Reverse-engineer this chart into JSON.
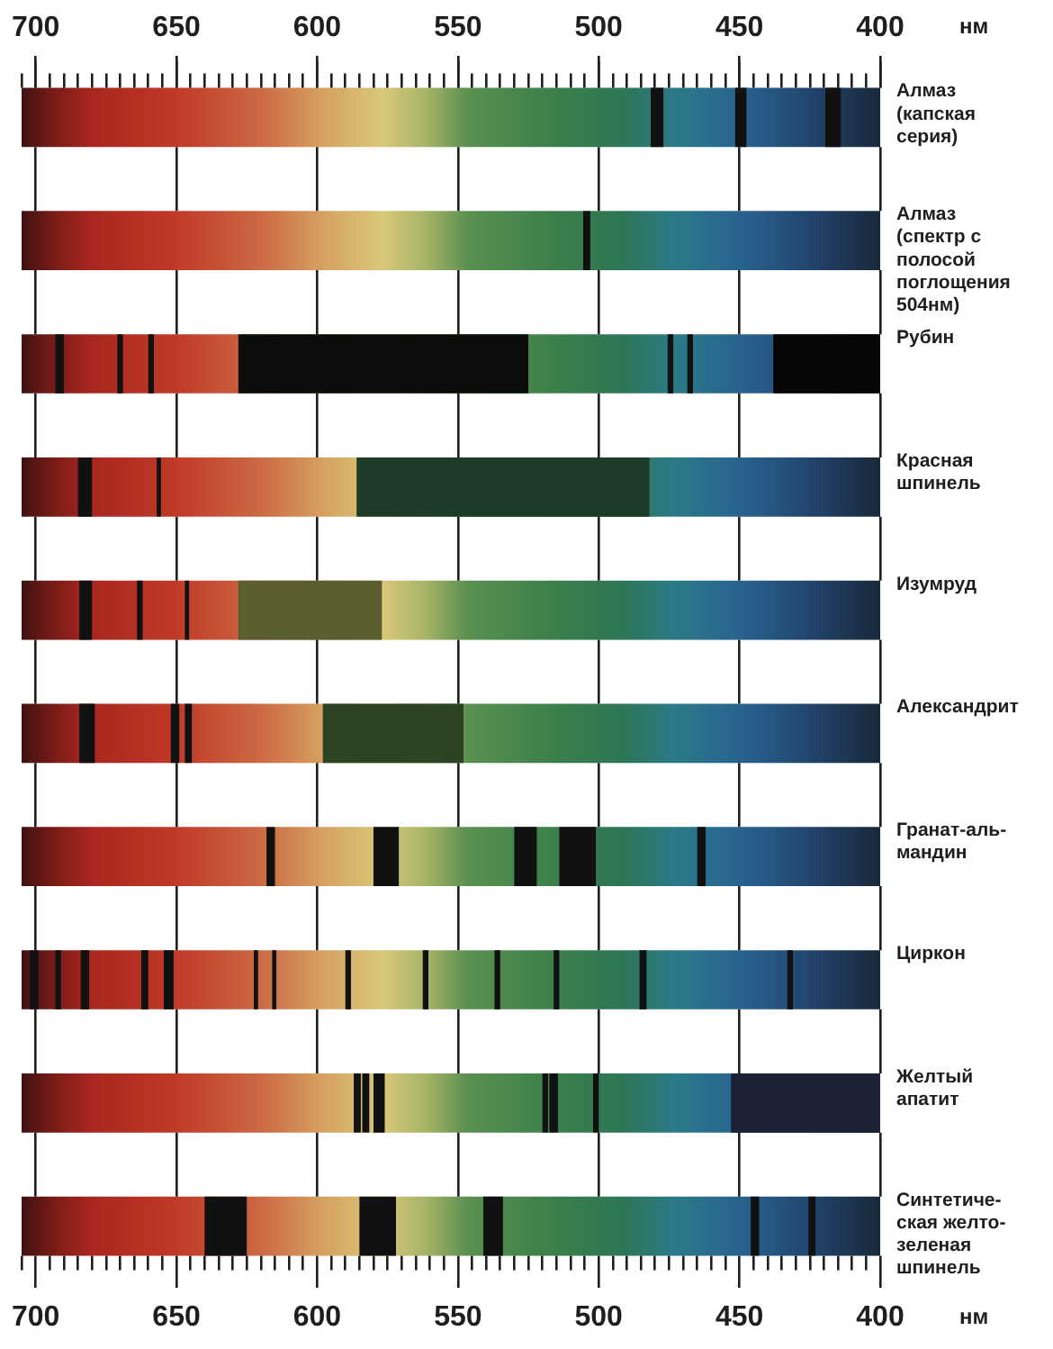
{
  "chart_data": {
    "type": "bar",
    "orientation": "horizontal",
    "categories": [
      "Алмаз\n(капская\nсерия)",
      "Алмаз\n(спектр с\nполосой\nпоглощения\n504нм)",
      "Рубин",
      "Красная\nшпинель",
      "Изумруд",
      "Александрит",
      "Гранат-аль-\nмандин",
      "Циркон",
      "Желтый\nапатит",
      "Синтетиче-\nская желто-\nзеленая\nшпинель"
    ],
    "series": [
      {
        "values": [
          305,
          305,
          305,
          305,
          305,
          305,
          305,
          305,
          305,
          305
        ],
        "base": [
          400,
          400,
          400,
          400,
          400,
          400,
          400,
          400,
          400,
          400
        ]
      },
      {
        "colors": [
          null,
          null,
          "#0b0d0b",
          "#1d3b26",
          "#5b5f30",
          "#2c4424",
          null,
          null,
          "#1a2233",
          null
        ],
        "values": [
          null,
          null,
          103,
          104,
          51,
          50,
          null,
          null,
          53,
          null
        ],
        "base": [
          null,
          null,
          525,
          482,
          577,
          548,
          null,
          null,
          400,
          null
        ]
      },
      {
        "color": "#070707",
        "values": [
          null,
          null,
          38,
          null,
          null,
          null,
          null,
          null,
          null,
          null
        ],
        "base": [
          null,
          null,
          400,
          null,
          null,
          null,
          null,
          null,
          null,
          null
        ]
      },
      {
        "color": "#111111",
        "values": [
          4.5,
          2.5,
          3,
          5,
          4.5,
          5.5,
          3,
          3,
          2.5,
          15
        ],
        "base": [
          477,
          503,
          690,
          680,
          680,
          679,
          615,
          699,
          584.5,
          625
        ]
      },
      {
        "color": "#111111",
        "values": [
          4,
          null,
          2,
          1.5,
          2,
          3,
          9,
          2,
          2.5,
          13
        ],
        "base": [
          447.5,
          null,
          669,
          655.5,
          662,
          649,
          571,
          691,
          581.5,
          572
        ]
      },
      {
        "color": "#111111",
        "values": [
          5.5,
          null,
          2,
          null,
          1.5,
          2.5,
          8,
          3,
          4,
          7
        ],
        "base": [
          414,
          null,
          658,
          null,
          645.5,
          644.5,
          522,
          681,
          576,
          534
        ]
      },
      {
        "color": "#111111",
        "values": [
          null,
          null,
          2,
          null,
          null,
          null,
          13,
          2.5,
          2,
          3
        ],
        "base": [
          null,
          null,
          473.5,
          null,
          null,
          null,
          501,
          660,
          518,
          443
        ]
      },
      {
        "color": "#111111",
        "values": [
          null,
          null,
          2,
          null,
          null,
          null,
          3,
          3.5,
          3,
          2.5
        ],
        "base": [
          null,
          null,
          466.5,
          null,
          null,
          null,
          462,
          651,
          514.5,
          423
        ]
      },
      {
        "color": "#111111",
        "values": [
          null,
          null,
          null,
          null,
          null,
          null,
          null,
          1.5,
          2,
          null
        ],
        "base": [
          null,
          null,
          null,
          null,
          null,
          null,
          null,
          621,
          500,
          null
        ]
      },
      {
        "color": "#111111",
        "values": [
          null,
          null,
          null,
          null,
          null,
          null,
          null,
          1.5,
          null,
          null
        ],
        "base": [
          null,
          null,
          null,
          null,
          null,
          null,
          null,
          614.5,
          null,
          null
        ]
      },
      {
        "color": "#111111",
        "values": [
          null,
          null,
          null,
          null,
          null,
          null,
          null,
          2,
          null,
          null
        ],
        "base": [
          null,
          null,
          null,
          null,
          null,
          null,
          null,
          588,
          null,
          null
        ]
      },
      {
        "color": "#111111",
        "values": [
          null,
          null,
          null,
          null,
          null,
          null,
          null,
          2,
          null,
          null
        ],
        "base": [
          null,
          null,
          null,
          null,
          null,
          null,
          null,
          560.5,
          null,
          null
        ]
      },
      {
        "color": "#111111",
        "values": [
          null,
          null,
          null,
          null,
          null,
          null,
          null,
          2,
          null,
          null
        ],
        "base": [
          null,
          null,
          null,
          null,
          null,
          null,
          null,
          535,
          null,
          null
        ]
      },
      {
        "color": "#111111",
        "values": [
          null,
          null,
          null,
          null,
          null,
          null,
          null,
          2,
          null,
          null
        ],
        "base": [
          null,
          null,
          null,
          null,
          null,
          null,
          null,
          514,
          null,
          null
        ]
      },
      {
        "color": "#111111",
        "values": [
          null,
          null,
          null,
          null,
          null,
          null,
          null,
          2.5,
          null,
          null
        ],
        "base": [
          null,
          null,
          null,
          null,
          null,
          null,
          null,
          483,
          null,
          null
        ]
      },
      {
        "color": "#111111",
        "values": [
          null,
          null,
          null,
          null,
          null,
          null,
          null,
          2,
          null,
          null
        ],
        "base": [
          null,
          null,
          null,
          null,
          null,
          null,
          null,
          431,
          null,
          null
        ]
      }
    ],
    "xlim": [
      705,
      400
    ],
    "xticks": [
      {
        "value": 705,
        "label": null
      },
      700,
      {
        "value": 695,
        "label": null
      },
      {
        "value": 690,
        "label": null
      },
      {
        "value": 685,
        "label": null
      },
      {
        "value": 680,
        "label": null
      },
      {
        "value": 675,
        "label": null
      },
      {
        "value": 670,
        "label": null
      },
      {
        "value": 665,
        "label": null
      },
      {
        "value": 660,
        "label": null
      },
      {
        "value": 655,
        "label": null
      },
      650,
      {
        "value": 645,
        "label": null
      },
      {
        "value": 640,
        "label": null
      },
      {
        "value": 635,
        "label": null
      },
      {
        "value": 630,
        "label": null
      },
      {
        "value": 625,
        "label": null
      },
      {
        "value": 620,
        "label": null
      },
      {
        "value": 615,
        "label": null
      },
      {
        "value": 610,
        "label": null
      },
      {
        "value": 605,
        "label": null
      },
      600,
      {
        "value": 595,
        "label": null
      },
      {
        "value": 590,
        "label": null
      },
      {
        "value": 585,
        "label": null
      },
      {
        "value": 580,
        "label": null
      },
      {
        "value": 575,
        "label": null
      },
      {
        "value": 570,
        "label": null
      },
      {
        "value": 565,
        "label": null
      },
      {
        "value": 560,
        "label": null
      },
      {
        "value": 555,
        "label": null
      },
      550,
      {
        "value": 545,
        "label": null
      },
      {
        "value": 540,
        "label": null
      },
      {
        "value": 535,
        "label": null
      },
      {
        "value": 530,
        "label": null
      },
      {
        "value": 525,
        "label": null
      },
      {
        "value": 520,
        "label": null
      },
      {
        "value": 515,
        "label": null
      },
      {
        "value": 510,
        "label": null
      },
      {
        "value": 505,
        "label": null
      },
      500,
      {
        "value": 495,
        "label": null
      },
      {
        "value": 490,
        "label": null
      },
      {
        "value": 485,
        "label": null
      },
      {
        "value": 480,
        "label": null
      },
      {
        "value": 475,
        "label": null
      },
      {
        "value": 470,
        "label": null
      },
      {
        "value": 465,
        "label": null
      },
      {
        "value": 460,
        "label": null
      },
      {
        "value": 455,
        "label": null
      },
      450,
      {
        "value": 445,
        "label": null
      },
      {
        "value": 440,
        "label": null
      },
      {
        "value": 435,
        "label": null
      },
      {
        "value": 430,
        "label": null
      },
      {
        "value": 425,
        "label": null
      },
      {
        "value": 420,
        "label": null
      },
      {
        "value": 415,
        "label": null
      },
      {
        "value": 410,
        "label": null
      },
      {
        "value": 405,
        "label": null
      },
      400
    ],
    "x2lim": [
      705,
      400
    ],
    "x2ticks": [
      {
        "value": 705,
        "label": null
      },
      700,
      {
        "value": 695,
        "label": null
      },
      {
        "value": 690,
        "label": null
      },
      {
        "value": 685,
        "label": null
      },
      {
        "value": 680,
        "label": null
      },
      {
        "value": 675,
        "label": null
      },
      {
        "value": 670,
        "label": null
      },
      {
        "value": 665,
        "label": null
      },
      {
        "value": 660,
        "label": null
      },
      {
        "value": 655,
        "label": null
      },
      650,
      {
        "value": 645,
        "label": null
      },
      {
        "value": 640,
        "label": null
      },
      {
        "value": 635,
        "label": null
      },
      {
        "value": 630,
        "label": null
      },
      {
        "value": 625,
        "label": null
      },
      {
        "value": 620,
        "label": null
      },
      {
        "value": 615,
        "label": null
      },
      {
        "value": 610,
        "label": null
      },
      {
        "value": 605,
        "label": null
      },
      600,
      {
        "value": 595,
        "label": null
      },
      {
        "value": 590,
        "label": null
      },
      {
        "value": 585,
        "label": null
      },
      {
        "value": 580,
        "label": null
      },
      {
        "value": 575,
        "label": null
      },
      {
        "value": 570,
        "label": null
      },
      {
        "value": 565,
        "label": null
      },
      {
        "value": 560,
        "label": null
      },
      {
        "value": 555,
        "label": null
      },
      550,
      {
        "value": 545,
        "label": null
      },
      {
        "value": 540,
        "label": null
      },
      {
        "value": 535,
        "label": null
      },
      {
        "value": 530,
        "label": null
      },
      {
        "value": 525,
        "label": null
      },
      {
        "value": 520,
        "label": null
      },
      {
        "value": 515,
        "label": null
      },
      {
        "value": 510,
        "label": null
      },
      {
        "value": 505,
        "label": null
      },
      500,
      {
        "value": 495,
        "label": null
      },
      {
        "value": 490,
        "label": null
      },
      {
        "value": 485,
        "label": null
      },
      {
        "value": 480,
        "label": null
      },
      {
        "value": 475,
        "label": null
      },
      {
        "value": 470,
        "label": null
      },
      {
        "value": 465,
        "label": null
      },
      {
        "value": 460,
        "label": null
      },
      {
        "value": 455,
        "label": null
      },
      450,
      {
        "value": 445,
        "label": null
      },
      {
        "value": 440,
        "label": null
      },
      {
        "value": 435,
        "label": null
      },
      {
        "value": 430,
        "label": null
      },
      {
        "value": 425,
        "label": null
      },
      {
        "value": 420,
        "label": null
      },
      {
        "value": 415,
        "label": null
      },
      {
        "value": 410,
        "label": null
      },
      {
        "value": 405,
        "label": null
      },
      400
    ],
    "xlabel": "нм",
    "x2label": "нм",
    "grid": "x"
  }
}
